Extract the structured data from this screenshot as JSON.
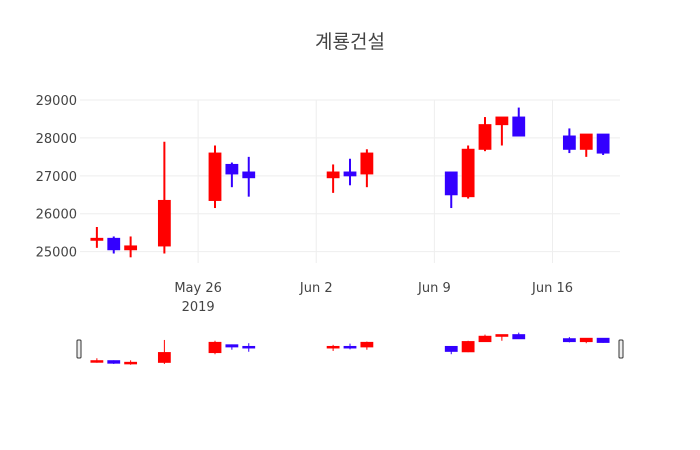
{
  "chart_data": {
    "type": "candlestick",
    "title": "계룡건설",
    "colors": {
      "increasing": "#ff0000",
      "decreasing": "#3300ff",
      "grid": "#eeeeee",
      "text": "#444444"
    },
    "grid": true,
    "range_slider": true,
    "x_range": [
      "2019-05-19",
      "2019-06-20"
    ],
    "y_range": [
      24700,
      29000
    ],
    "y_ticks": [
      25000,
      26000,
      27000,
      28000,
      29000
    ],
    "y_tick_labels": [
      "25000",
      "26000",
      "27000",
      "28000",
      "29000"
    ],
    "x_ticks": [
      "2019-05-26",
      "2019-06-02",
      "2019-06-09",
      "2019-06-16"
    ],
    "x_tick_labels": [
      "May 26",
      "Jun 2",
      "Jun 9",
      "Jun 16"
    ],
    "x_year_label": "2019",
    "candles": [
      {
        "date": "2019-05-20",
        "open": 25300,
        "high": 25650,
        "low": 25100,
        "close": 25350
      },
      {
        "date": "2019-05-21",
        "open": 25350,
        "high": 25400,
        "low": 24950,
        "close": 25050
      },
      {
        "date": "2019-05-22",
        "open": 25050,
        "high": 25400,
        "low": 24850,
        "close": 25150
      },
      {
        "date": "2019-05-24",
        "open": 25150,
        "high": 27900,
        "low": 24950,
        "close": 26350
      },
      {
        "date": "2019-05-27",
        "open": 26350,
        "high": 27800,
        "low": 26150,
        "close": 27600
      },
      {
        "date": "2019-05-28",
        "open": 27300,
        "high": 27350,
        "low": 26700,
        "close": 27050
      },
      {
        "date": "2019-05-29",
        "open": 27100,
        "high": 27500,
        "low": 26450,
        "close": 26950
      },
      {
        "date": "2019-06-03",
        "open": 26950,
        "high": 27300,
        "low": 26550,
        "close": 27100
      },
      {
        "date": "2019-06-04",
        "open": 27100,
        "high": 27450,
        "low": 26750,
        "close": 27000
      },
      {
        "date": "2019-06-05",
        "open": 27050,
        "high": 27700,
        "low": 26700,
        "close": 27600
      },
      {
        "date": "2019-06-10",
        "open": 27100,
        "high": 27100,
        "low": 26150,
        "close": 26500
      },
      {
        "date": "2019-06-11",
        "open": 26450,
        "high": 27800,
        "low": 26400,
        "close": 27700
      },
      {
        "date": "2019-06-12",
        "open": 27700,
        "high": 28550,
        "low": 27650,
        "close": 28350
      },
      {
        "date": "2019-06-13",
        "open": 28350,
        "high": 28550,
        "low": 27800,
        "close": 28550
      },
      {
        "date": "2019-06-14",
        "open": 28550,
        "high": 28800,
        "low": 28050,
        "close": 28050
      },
      {
        "date": "2019-06-17",
        "open": 28050,
        "high": 28250,
        "low": 27600,
        "close": 27700
      },
      {
        "date": "2019-06-18",
        "open": 27700,
        "high": 28100,
        "low": 27500,
        "close": 28100
      },
      {
        "date": "2019-06-19",
        "open": 28100,
        "high": 28100,
        "low": 27550,
        "close": 27600
      }
    ]
  }
}
